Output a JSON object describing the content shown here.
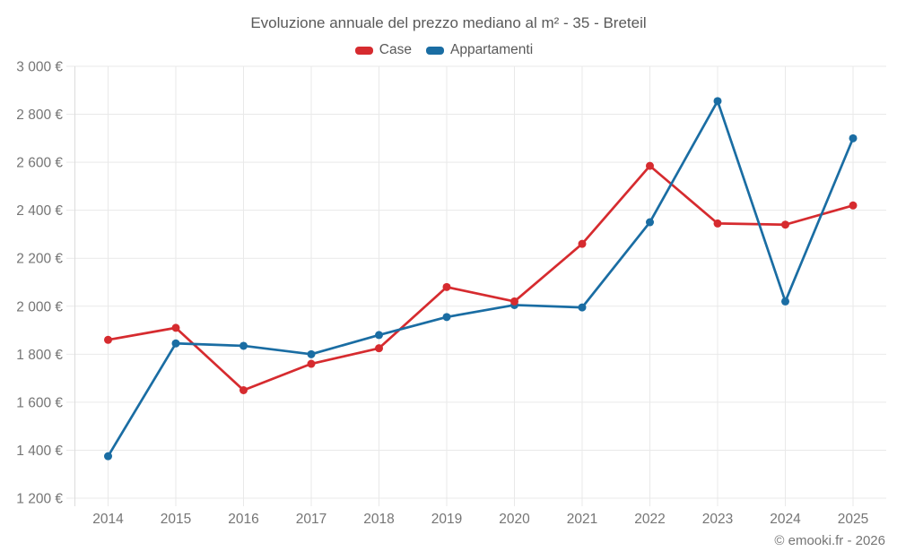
{
  "title": "Evoluzione annuale del prezzo mediano al m² - 35 - Breteil",
  "legend": {
    "items": [
      {
        "label": "Case",
        "color": "#d62b2f"
      },
      {
        "label": "Appartamenti",
        "color": "#1a6da3"
      }
    ]
  },
  "footer": {
    "copyright": "© emooki.fr - 2026"
  },
  "colors": {
    "grid": "#e9e9e9",
    "axis_line": "#dcdcdc",
    "axis_text": "#757575",
    "title_text": "#595959",
    "case_red": "#d62b2f",
    "appartamenti_blue": "#1a6da3"
  },
  "chart_data": {
    "type": "line",
    "title": "Evoluzione annuale del prezzo mediano al m² - 35 - Breteil",
    "categories": [
      "2014",
      "2015",
      "2016",
      "2017",
      "2018",
      "2019",
      "2020",
      "2021",
      "2022",
      "2023",
      "2024",
      "2025"
    ],
    "series": [
      {
        "name": "Case",
        "color": "#d62b2f",
        "values": [
          1860,
          1910,
          1650,
          1760,
          1825,
          2080,
          2020,
          2260,
          2585,
          2345,
          2340,
          2420
        ]
      },
      {
        "name": "Appartamenti",
        "color": "#1a6da3",
        "values": [
          1375,
          1845,
          1835,
          1800,
          1880,
          1955,
          2005,
          1995,
          2350,
          2855,
          2020,
          2700
        ]
      }
    ],
    "xlabel": "",
    "ylabel": "",
    "unit": "€",
    "ylim": [
      1200,
      3000
    ],
    "y_tick_step": 200,
    "y_tick_labels": [
      "1 200 €",
      "1 400 €",
      "1 600 €",
      "1 800 €",
      "2 000 €",
      "2 200 €",
      "2 400 €",
      "2 600 €",
      "2 800 €",
      "3 000 €"
    ],
    "grid": true,
    "legend_position": "top",
    "marker": "circle"
  }
}
